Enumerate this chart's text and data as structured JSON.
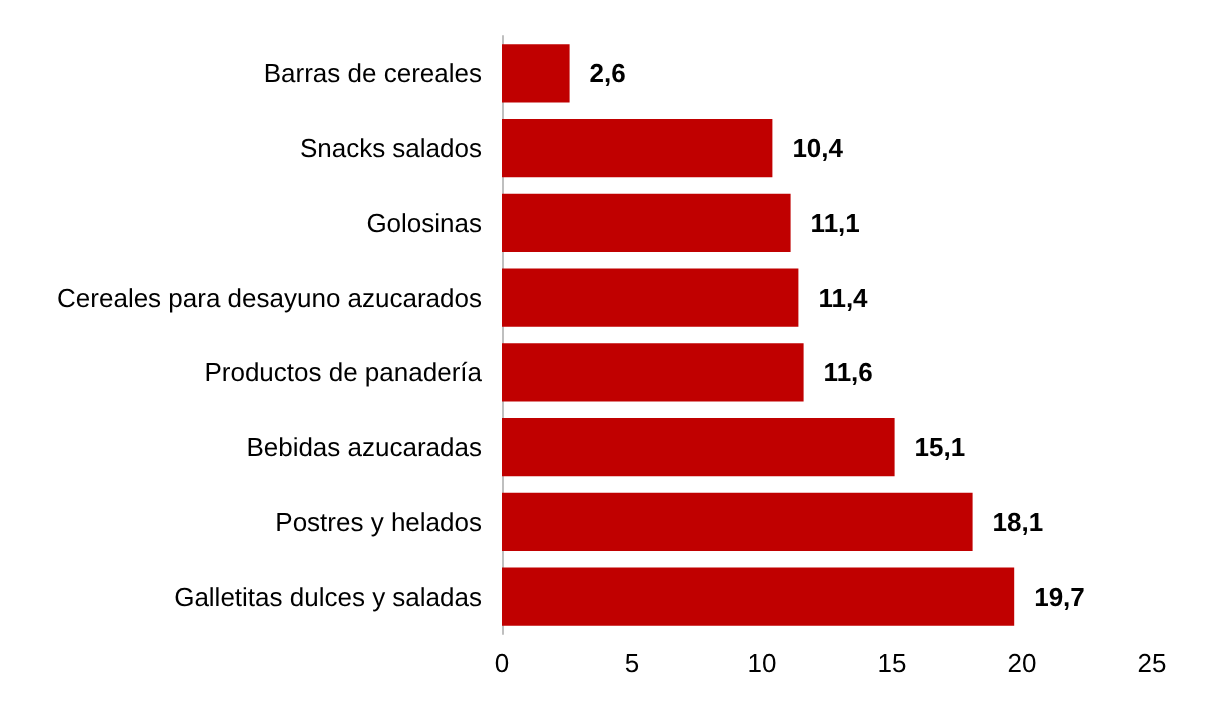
{
  "chart_data": {
    "type": "bar",
    "orientation": "horizontal",
    "categories": [
      "Barras de cereales",
      "Snacks salados",
      "Golosinas",
      "Cereales para desayuno azucarados",
      "Productos de panadería",
      "Bebidas azucaradas",
      "Postres y helados",
      "Galletitas dulces y saladas"
    ],
    "values": [
      2.6,
      10.4,
      11.1,
      11.4,
      11.6,
      15.1,
      18.1,
      19.7
    ],
    "value_labels": [
      "2,6",
      "10,4",
      "11,1",
      "11,4",
      "11,6",
      "15,1",
      "18,1",
      "19,7"
    ],
    "color": "#c00000",
    "xlim": [
      0,
      25
    ],
    "xticks": [
      0,
      5,
      10,
      15,
      20,
      25
    ],
    "grid": false
  }
}
